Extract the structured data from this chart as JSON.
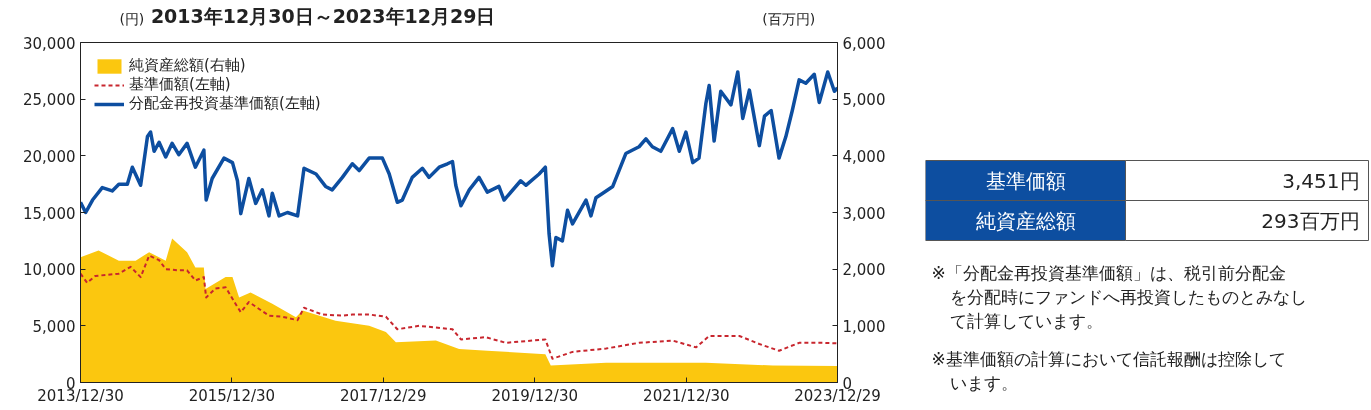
{
  "chart_data": [
    {
      "type": "line",
      "title": "2013年12月30日～2023年12月29日",
      "ylabel": "(円)",
      "y2label": "(百万円)",
      "xlim": [
        "2013-12-30",
        "2023-12-29"
      ],
      "xticks": [
        {
          "value": "2013-12-30",
          "label": "2013/12/30"
        },
        {
          "value": "2015-12-30",
          "label": "2015/12/30"
        },
        {
          "value": "2017-12-29",
          "label": "2017/12/29"
        },
        {
          "value": "2019-12-30",
          "label": "2019/12/30"
        },
        {
          "value": "2021-12-30",
          "label": "2021/12/30"
        },
        {
          "value": "2023-12-29",
          "label": "2023/12/29"
        }
      ],
      "ylim": [
        0,
        30000
      ],
      "yticks": [
        0,
        {
          "value": 5000,
          "label": "5,000"
        },
        {
          "value": 10000,
          "label": "10,000"
        },
        {
          "value": 15000,
          "label": "15,000"
        },
        {
          "value": 20000,
          "label": "20,000"
        },
        {
          "value": 25000,
          "label": "25,000"
        },
        {
          "value": 30000,
          "label": "30,000"
        }
      ],
      "y2lim": [
        0,
        6000
      ],
      "y2ticks": [
        0,
        {
          "value": 1000,
          "label": "1,000"
        },
        {
          "value": 2000,
          "label": "2,000"
        },
        {
          "value": 3000,
          "label": "3,000"
        },
        {
          "value": 4000,
          "label": "4,000"
        },
        {
          "value": 5000,
          "label": "5,000"
        },
        {
          "value": 6000,
          "label": "6,000"
        }
      ],
      "grid": false,
      "legend": "top left",
      "series": [
        {
          "name": "純資産総額(右軸)",
          "type": "area",
          "axis": "y2",
          "color": "#fbc70f",
          "x": [
            "2013-12-30",
            "2014-03-27",
            "2014-07-03",
            "2014-09-22",
            "2014-11-26",
            "2015-02-14",
            "2015-03-17",
            "2015-05-28",
            "2015-07-07",
            "2015-08-17",
            "2015-08-25",
            "2015-11-30",
            "2016-01-02",
            "2016-02-03",
            "2016-03-29",
            "2016-07-12",
            "2016-11-03",
            "2016-12-05",
            "2017-05-13",
            "2017-10-22",
            "2018-01-11",
            "2018-02-28",
            "2018-09-09",
            "2018-12-30",
            "2019-05-15",
            "2020-02-19",
            "2020-03-16",
            "2020-12-08",
            "2022-04-03",
            "2023-02-20",
            "2023-12-29"
          ],
          "values": [
            2210,
            2330,
            2150,
            2150,
            2300,
            2150,
            2540,
            2300,
            2030,
            2030,
            1650,
            1860,
            1860,
            1500,
            1590,
            1390,
            1150,
            1270,
            1090,
            1000,
            890,
            710,
            740,
            590,
            560,
            500,
            300,
            350,
            350,
            300,
            293
          ]
        },
        {
          "name": "基準価額(左軸)",
          "type": "line",
          "line_style": "dashed",
          "color": "#c8262e",
          "x": [
            "2013-12-30",
            "2014-01-31",
            "2014-03-11",
            "2014-07-03",
            "2014-08-29",
            "2014-10-16",
            "2014-11-26",
            "2015-01-13",
            "2015-02-14",
            "2015-04-18",
            "2015-05-28",
            "2015-07-07",
            "2015-08-17",
            "2015-08-28",
            "2015-10-12",
            "2015-11-30",
            "2016-01-18",
            "2016-02-11",
            "2016-03-21",
            "2016-06-26",
            "2016-08-30",
            "2016-11-11",
            "2016-12-12",
            "2017-03-10",
            "2017-06-15",
            "2017-08-02",
            "2017-10-22",
            "2018-01-11",
            "2018-03-07",
            "2018-06-20",
            "2018-11-28",
            "2019-01-08",
            "2019-05-07",
            "2019-08-12",
            "2020-02-19",
            "2020-03-24",
            "2020-06-29",
            "2020-12-08",
            "2021-05-16",
            "2021-10-25",
            "2022-02-15",
            "2022-04-19",
            "2022-09-12",
            "2022-12-17",
            "2023-03-22",
            "2023-06-27",
            "2023-10-18",
            "2023-12-29"
          ],
          "values": [
            9600,
            8800,
            9400,
            9600,
            10200,
            9300,
            11200,
            10800,
            10000,
            9900,
            9900,
            9000,
            9300,
            7500,
            8300,
            8400,
            6900,
            6200,
            7100,
            5900,
            5800,
            5500,
            6600,
            6000,
            5900,
            6000,
            6000,
            5800,
            4700,
            5000,
            4700,
            3800,
            4000,
            3500,
            3800,
            2100,
            2700,
            3000,
            3500,
            3700,
            3100,
            4100,
            4100,
            3400,
            2800,
            3500,
            3500,
            3451
          ]
        },
        {
          "name": "分配金再投資基準価額(左軸)",
          "type": "line",
          "line_style": "solid",
          "color": "#0d4ea0",
          "x": [
            "2013-12-30",
            "2014-01-24",
            "2014-02-26",
            "2014-04-14",
            "2014-06-01",
            "2014-07-03",
            "2014-08-13",
            "2014-09-06",
            "2014-10-16",
            "2014-11-18",
            "2014-12-03",
            "2014-12-20",
            "2015-01-13",
            "2015-02-14",
            "2015-03-17",
            "2015-04-18",
            "2015-05-28",
            "2015-07-07",
            "2015-08-17",
            "2015-08-28",
            "2015-09-26",
            "2015-11-22",
            "2016-01-02",
            "2016-01-26",
            "2016-02-11",
            "2016-03-21",
            "2016-04-23",
            "2016-05-25",
            "2016-06-26",
            "2016-07-12",
            "2016-08-14",
            "2016-09-23",
            "2016-11-11",
            "2016-12-12",
            "2017-02-08",
            "2017-03-26",
            "2017-04-27",
            "2017-06-15",
            "2017-08-02",
            "2017-09-04",
            "2017-10-22",
            "2017-12-25",
            "2018-01-27",
            "2018-03-07",
            "2018-03-31",
            "2018-05-18",
            "2018-07-06",
            "2018-08-07",
            "2018-09-25",
            "2018-11-04",
            "2018-11-28",
            "2018-12-14",
            "2019-01-08",
            "2019-02-17",
            "2019-04-05",
            "2019-05-15",
            "2019-07-10",
            "2019-08-04",
            "2019-10-23",
            "2019-11-17",
            "2020-01-20",
            "2020-02-19",
            "2020-03-08",
            "2020-03-24",
            "2020-04-10",
            "2020-05-11",
            "2020-06-05",
            "2020-06-29",
            "2020-09-02",
            "2020-09-26",
            "2020-10-20",
            "2020-11-22",
            "2021-01-09",
            "2021-03-13",
            "2021-05-16",
            "2021-06-18",
            "2021-07-19",
            "2021-08-29",
            "2021-10-25",
            "2021-11-26",
            "2021-12-28",
            "2022-01-30",
            "2022-03-01",
            "2022-04-03",
            "2022-04-19",
            "2022-05-13",
            "2022-06-14",
            "2022-08-02",
            "2022-09-04",
            "2022-09-28",
            "2022-10-30",
            "2022-12-17",
            "2023-01-11",
            "2023-02-12",
            "2023-03-22",
            "2023-04-24",
            "2023-05-25",
            "2023-06-27",
            "2023-07-29",
            "2023-09-08",
            "2023-10-02",
            "2023-11-12",
            "2023-12-14",
            "2023-12-29"
          ],
          "values": [
            15900,
            15000,
            16100,
            17200,
            16900,
            17500,
            17500,
            19000,
            17400,
            21700,
            22100,
            20400,
            21200,
            19900,
            21100,
            20100,
            21100,
            19000,
            20500,
            16100,
            18000,
            19800,
            19400,
            17800,
            14900,
            18000,
            15800,
            17000,
            14700,
            16700,
            14700,
            15000,
            14700,
            18900,
            18400,
            17300,
            17000,
            18100,
            19300,
            18700,
            19800,
            19800,
            18400,
            15900,
            16100,
            18100,
            18900,
            18100,
            19000,
            19300,
            19500,
            17400,
            15600,
            17000,
            18100,
            16800,
            17300,
            16100,
            17800,
            17400,
            18400,
            19000,
            13100,
            10300,
            12800,
            12500,
            15200,
            14000,
            16100,
            14700,
            16300,
            16700,
            17300,
            20200,
            20800,
            21500,
            20800,
            20400,
            22400,
            20400,
            22100,
            19400,
            19800,
            24600,
            26200,
            21300,
            25700,
            24500,
            27400,
            23300,
            25800,
            20900,
            23500,
            24000,
            19800,
            21700,
            24000,
            26700,
            26400,
            27200,
            24700,
            27400,
            25700,
            26000
          ]
        }
      ]
    },
    {
      "type": "other",
      "color": "#0d4ea0",
      "annotations": [
        "基準価額",
        "3,451円",
        "純資産総額",
        "293百万円",
        "※「分配金再投資基準価額」は、税引前分配金を分配時にファンドへ再投資したものとみなして計算しています。",
        "※基準価額の計算において信託報酬は控除しています。"
      ]
    }
  ]
}
